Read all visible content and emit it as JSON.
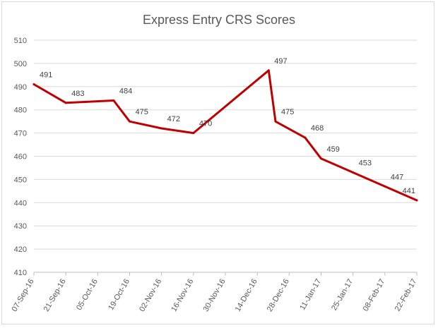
{
  "chart_data": {
    "type": "line",
    "title": "Express Entry CRS Scores",
    "xlabel": "",
    "ylabel": "",
    "ylim": [
      410,
      510
    ],
    "ytick_step": 10,
    "grid": true,
    "legend": "none",
    "colors": {
      "line": "#c00000",
      "grid": "#d9d9d9",
      "axis_text": "#595959"
    },
    "x_ticks": [
      "07-Sep-16",
      "21-Sep-16",
      "05-Oct-16",
      "19-Oct-16",
      "02-Nov-16",
      "16-Nov-16",
      "30-Nov-16",
      "14-Dec-16",
      "28-Dec-16",
      "11-Jan-17",
      "25-Jan-17",
      "08-Feb-17",
      "22-Feb-17"
    ],
    "series": [
      {
        "name": "",
        "points": [
          {
            "x": "2016-09-07",
            "y": 491,
            "label": "491"
          },
          {
            "x": "2016-09-21",
            "y": 483,
            "label": "483"
          },
          {
            "x": "2016-10-12",
            "y": 484,
            "label": "484"
          },
          {
            "x": "2016-10-19",
            "y": 475,
            "label": "475"
          },
          {
            "x": "2016-11-02",
            "y": 472,
            "label": "472"
          },
          {
            "x": "2016-11-16",
            "y": 470,
            "label": "470"
          },
          {
            "x": "2016-12-19",
            "y": 497,
            "label": "497"
          },
          {
            "x": "2016-12-22",
            "y": 475,
            "label": "475"
          },
          {
            "x": "2017-01-04",
            "y": 468,
            "label": "468"
          },
          {
            "x": "2017-01-11",
            "y": 459,
            "label": "459"
          },
          {
            "x": "2017-01-25",
            "y": 453,
            "label": "453"
          },
          {
            "x": "2017-02-08",
            "y": 447,
            "label": "447"
          },
          {
            "x": "2017-02-22",
            "y": 441,
            "label": "441"
          }
        ]
      }
    ]
  }
}
